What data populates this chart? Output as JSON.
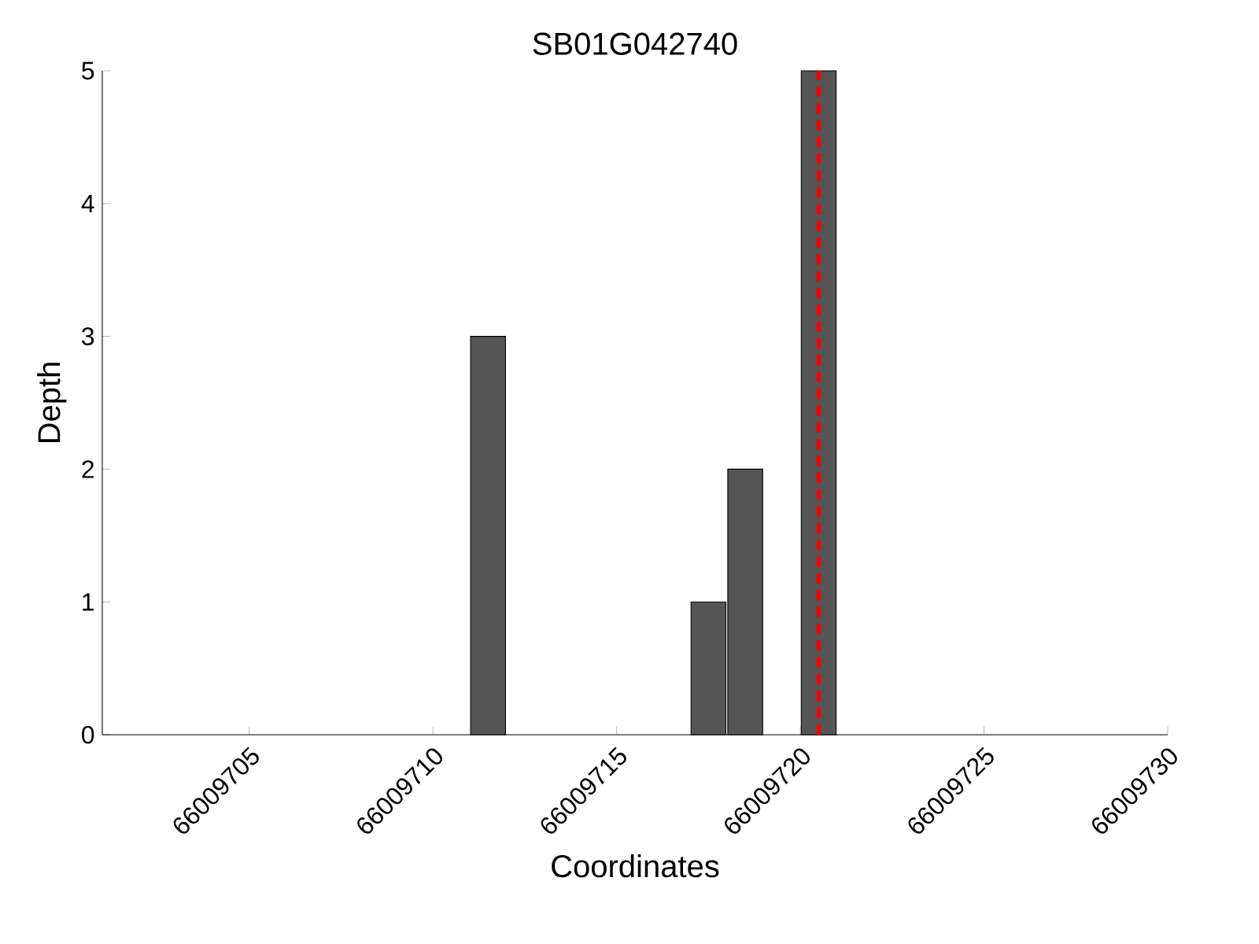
{
  "chart_data": {
    "type": "bar",
    "title": "SB01G042740",
    "xlabel": "Coordinates",
    "ylabel": "Depth",
    "x": [
      66009711.5,
      66009717.5,
      66009718.5,
      66009720.5
    ],
    "values": [
      3,
      1,
      2,
      5
    ],
    "color": "#555555",
    "xlim": [
      66009701,
      66009730
    ],
    "xticks": [
      66009705,
      66009710,
      66009715,
      66009720,
      66009725,
      66009730
    ],
    "ylim": [
      0,
      5
    ],
    "yticks": [
      0,
      1,
      2,
      3,
      4,
      5
    ],
    "ref_lines": [
      {
        "axis": "x",
        "value": 66009720.5,
        "color": "#ff0000",
        "line_style": "dashed"
      }
    ],
    "grid": false
  }
}
